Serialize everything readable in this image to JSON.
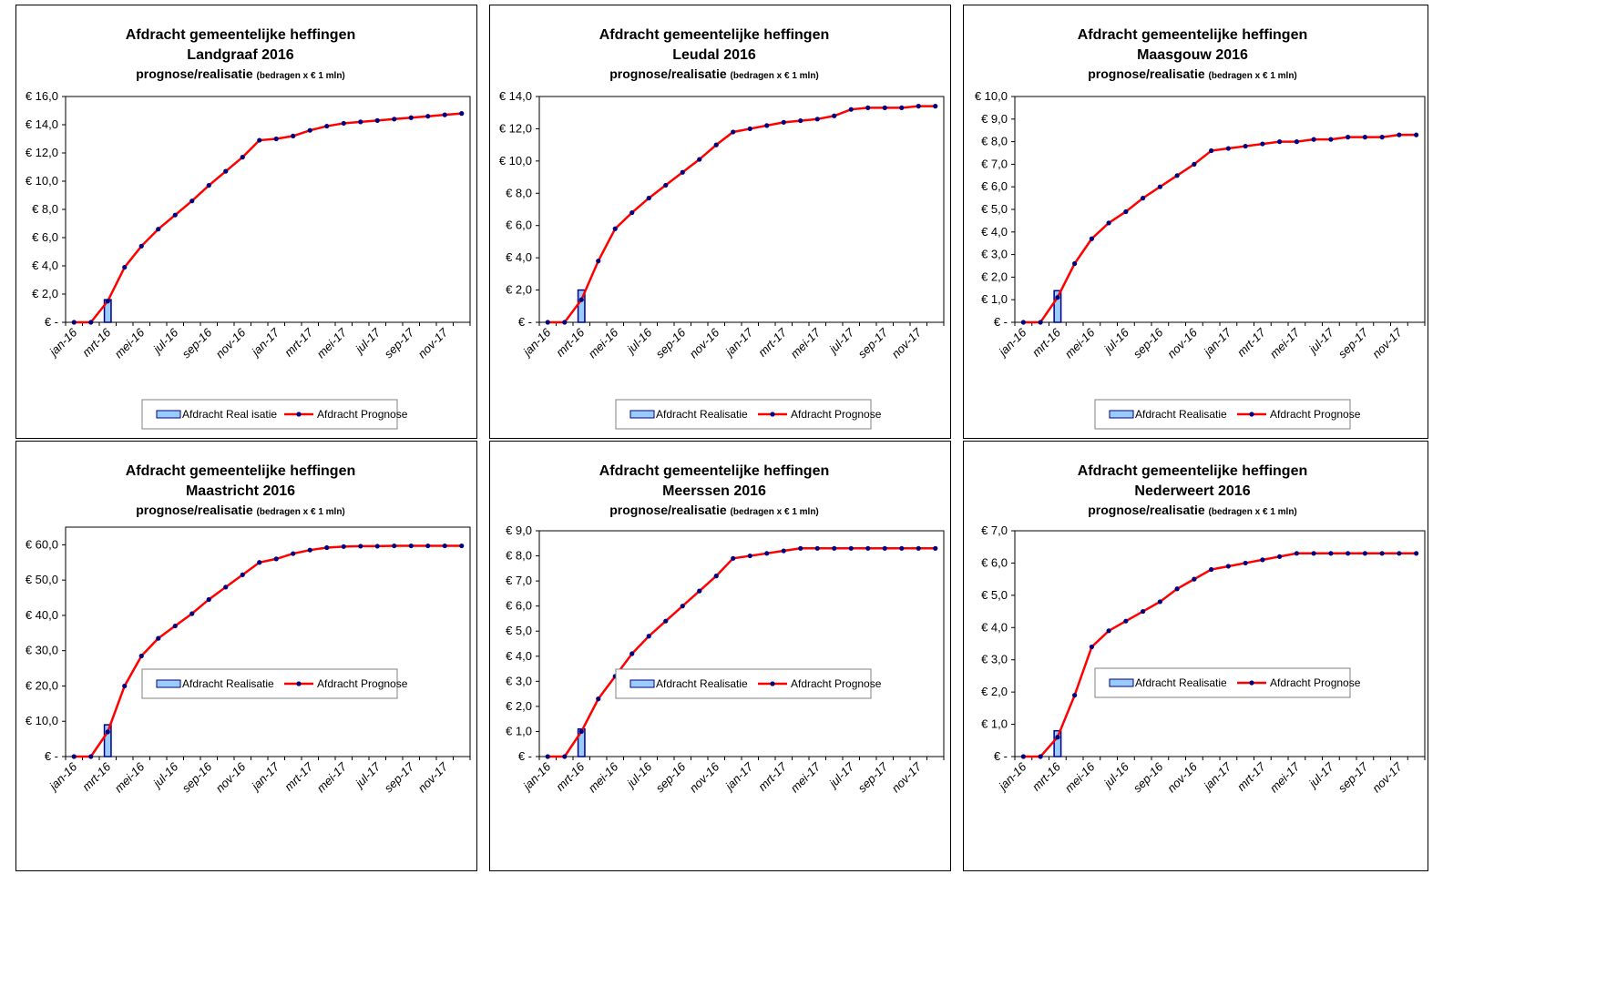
{
  "header": {
    "text": ""
  },
  "colors": {
    "realisatie_fill": "#99ccff",
    "realisatie_stroke": "#000080",
    "prognose_line": "#ff0000",
    "prognose_marker": "#000080",
    "plot_border": "#000000"
  },
  "legend": {
    "prognose": "Afdracht Prognose"
  },
  "x_tick_labels": [
    "jan-16",
    "mrt-16",
    "mei-16",
    "jul-16",
    "sep-16",
    "nov-16",
    "jan-17",
    "mrt-17",
    "mei-17",
    "jul-17",
    "sep-17",
    "nov-17"
  ],
  "chart_data": [
    {
      "type": "bar+line",
      "title_line1": "Afdracht gemeentelijke heffingen",
      "title_line2": "Landgraaf 2016",
      "title_line3_main": "prognose/realisatie",
      "title_line3_small": "(bedragen x € 1 mln)",
      "legend_realisatie": "Afdracht Real isatie",
      "ylim": [
        0,
        16
      ],
      "y_ticks": [
        "€ -",
        "€ 2,0",
        "€ 4,0",
        "€ 6,0",
        "€ 8,0",
        "€ 10,0",
        "€ 12,0",
        "€ 14,0",
        "€ 16,0"
      ],
      "x": [
        "jan-16",
        "feb-16",
        "mrt-16",
        "apr-16",
        "mei-16",
        "jun-16",
        "jul-16",
        "aug-16",
        "sep-16",
        "okt-16",
        "nov-16",
        "dec-16",
        "jan-17",
        "feb-17",
        "mrt-17",
        "apr-17",
        "mei-17",
        "jun-17",
        "jul-17",
        "aug-17",
        "sep-17",
        "okt-17",
        "nov-17",
        "dec-17"
      ],
      "series": [
        {
          "name": "Afdracht Realisatie",
          "kind": "bar",
          "values": [
            null,
            null,
            1.6,
            null,
            null,
            null,
            null,
            null,
            null,
            null,
            null,
            null,
            null,
            null,
            null,
            null,
            null,
            null,
            null,
            null,
            null,
            null,
            null,
            null
          ]
        },
        {
          "name": "Afdracht Prognose",
          "kind": "line",
          "values": [
            0,
            0,
            1.5,
            3.9,
            5.4,
            6.6,
            7.6,
            8.6,
            9.7,
            10.7,
            11.7,
            12.9,
            13.0,
            13.2,
            13.6,
            13.9,
            14.1,
            14.2,
            14.3,
            14.4,
            14.5,
            14.6,
            14.7,
            14.8
          ]
        }
      ]
    },
    {
      "type": "bar+line",
      "title_line1": "Afdracht gemeentelijke heffingen",
      "title_line2": "Leudal 2016",
      "title_line3_main": "prognose/realisatie",
      "title_line3_small": "(bedragen x € 1 mln)",
      "legend_realisatie": "Afdracht Realisatie",
      "ylim": [
        0,
        14
      ],
      "y_ticks": [
        "€ -",
        "€ 2,0",
        "€ 4,0",
        "€ 6,0",
        "€ 8,0",
        "€ 10,0",
        "€ 12,0",
        "€ 14,0"
      ],
      "x": [
        "jan-16",
        "feb-16",
        "mrt-16",
        "apr-16",
        "mei-16",
        "jun-16",
        "jul-16",
        "aug-16",
        "sep-16",
        "okt-16",
        "nov-16",
        "dec-16",
        "jan-17",
        "feb-17",
        "mrt-17",
        "apr-17",
        "mei-17",
        "jun-17",
        "jul-17",
        "aug-17",
        "sep-17",
        "okt-17",
        "nov-17",
        "dec-17"
      ],
      "series": [
        {
          "name": "Afdracht Realisatie",
          "kind": "bar",
          "values": [
            null,
            null,
            2.0,
            null,
            null,
            null,
            null,
            null,
            null,
            null,
            null,
            null,
            null,
            null,
            null,
            null,
            null,
            null,
            null,
            null,
            null,
            null,
            null,
            null
          ]
        },
        {
          "name": "Afdracht Prognose",
          "kind": "line",
          "values": [
            0,
            0,
            1.4,
            3.8,
            5.8,
            6.8,
            7.7,
            8.5,
            9.3,
            10.1,
            11.0,
            11.8,
            12.0,
            12.2,
            12.4,
            12.5,
            12.6,
            12.8,
            13.2,
            13.3,
            13.3,
            13.3,
            13.4,
            13.4
          ]
        }
      ]
    },
    {
      "type": "bar+line",
      "title_line1": "Afdracht gemeentelijke heffingen",
      "title_line2": "Maasgouw 2016",
      "title_line3_main": "prognose/realisatie",
      "title_line3_small": "(bedragen x € 1 mln)",
      "legend_realisatie": "Afdracht Realisatie",
      "ylim": [
        0,
        10
      ],
      "y_ticks": [
        "€ -",
        "€ 1,0",
        "€ 2,0",
        "€ 3,0",
        "€ 4,0",
        "€ 5,0",
        "€ 6,0",
        "€ 7,0",
        "€ 8,0",
        "€ 9,0",
        "€ 10,0"
      ],
      "x": [
        "jan-16",
        "feb-16",
        "mrt-16",
        "apr-16",
        "mei-16",
        "jun-16",
        "jul-16",
        "aug-16",
        "sep-16",
        "okt-16",
        "nov-16",
        "dec-16",
        "jan-17",
        "feb-17",
        "mrt-17",
        "apr-17",
        "mei-17",
        "jun-17",
        "jul-17",
        "aug-17",
        "sep-17",
        "okt-17",
        "nov-17",
        "dec-17"
      ],
      "series": [
        {
          "name": "Afdracht Realisatie",
          "kind": "bar",
          "values": [
            null,
            null,
            1.4,
            null,
            null,
            null,
            null,
            null,
            null,
            null,
            null,
            null,
            null,
            null,
            null,
            null,
            null,
            null,
            null,
            null,
            null,
            null,
            null,
            null
          ]
        },
        {
          "name": "Afdracht Prognose",
          "kind": "line",
          "values": [
            0,
            0,
            1.1,
            2.6,
            3.7,
            4.4,
            4.9,
            5.5,
            6.0,
            6.5,
            7.0,
            7.6,
            7.7,
            7.8,
            7.9,
            8.0,
            8.0,
            8.1,
            8.1,
            8.2,
            8.2,
            8.2,
            8.3,
            8.3
          ]
        }
      ]
    },
    {
      "type": "bar+line",
      "title_line1": "Afdracht gemeentelijke heffingen",
      "title_line2": "Maastricht 2016",
      "title_line3_main": "prognose/realisatie",
      "title_line3_small": "(bedragen x € 1 mln)",
      "legend_realisatie": "Afdracht Realisatie",
      "ylim": [
        0,
        65
      ],
      "y_ticks": [
        "€ -",
        "€ 10,0",
        "€ 20,0",
        "€ 30,0",
        "€ 40,0",
        "€ 50,0",
        "€ 60,0"
      ],
      "tick_step": 10,
      "x": [
        "jan-16",
        "feb-16",
        "mrt-16",
        "apr-16",
        "mei-16",
        "jun-16",
        "jul-16",
        "aug-16",
        "sep-16",
        "okt-16",
        "nov-16",
        "dec-16",
        "jan-17",
        "feb-17",
        "mrt-17",
        "apr-17",
        "mei-17",
        "jun-17",
        "jul-17",
        "aug-17",
        "sep-17",
        "okt-17",
        "nov-17",
        "dec-17"
      ],
      "series": [
        {
          "name": "Afdracht Realisatie",
          "kind": "bar",
          "values": [
            null,
            null,
            9.0,
            null,
            null,
            null,
            null,
            null,
            null,
            null,
            null,
            null,
            null,
            null,
            null,
            null,
            null,
            null,
            null,
            null,
            null,
            null,
            null,
            null
          ]
        },
        {
          "name": "Afdracht Prognose",
          "kind": "line",
          "values": [
            0,
            0,
            7.0,
            20.0,
            28.5,
            33.5,
            37.0,
            40.5,
            44.5,
            48.0,
            51.5,
            55.0,
            56.0,
            57.5,
            58.5,
            59.2,
            59.5,
            59.6,
            59.6,
            59.7,
            59.7,
            59.7,
            59.7,
            59.7
          ]
        }
      ]
    },
    {
      "type": "bar+line",
      "title_line1": "Afdracht gemeentelijke heffingen",
      "title_line2": "Meerssen 2016",
      "title_line3_main": "prognose/realisatie",
      "title_line3_small": "(bedragen x € 1 mln)",
      "legend_realisatie": "Afdracht Realisatie",
      "ylim": [
        0,
        9
      ],
      "y_ticks": [
        "€ -",
        "€ 1,0",
        "€ 2,0",
        "€ 3,0",
        "€ 4,0",
        "€ 5,0",
        "€ 6,0",
        "€ 7,0",
        "€ 8,0",
        "€ 9,0"
      ],
      "x": [
        "jan-16",
        "feb-16",
        "mrt-16",
        "apr-16",
        "mei-16",
        "jun-16",
        "jul-16",
        "aug-16",
        "sep-16",
        "okt-16",
        "nov-16",
        "dec-16",
        "jan-17",
        "feb-17",
        "mrt-17",
        "apr-17",
        "mei-17",
        "jun-17",
        "jul-17",
        "aug-17",
        "sep-17",
        "okt-17",
        "nov-17",
        "dec-17"
      ],
      "series": [
        {
          "name": "Afdracht Realisatie",
          "kind": "bar",
          "values": [
            null,
            null,
            1.1,
            null,
            null,
            null,
            null,
            null,
            null,
            null,
            null,
            null,
            null,
            null,
            null,
            null,
            null,
            null,
            null,
            null,
            null,
            null,
            null,
            null
          ]
        },
        {
          "name": "Afdracht Prognose",
          "kind": "line",
          "values": [
            0,
            0,
            1.0,
            2.3,
            3.2,
            4.1,
            4.8,
            5.4,
            6.0,
            6.6,
            7.2,
            7.9,
            8.0,
            8.1,
            8.2,
            8.3,
            8.3,
            8.3,
            8.3,
            8.3,
            8.3,
            8.3,
            8.3,
            8.3
          ]
        }
      ]
    },
    {
      "type": "bar+line",
      "title_line1": "Afdracht gemeentelijke heffingen",
      "title_line2": "Nederweert 2016",
      "title_line3_main": "prognose/realisatie",
      "title_line3_small": "(bedragen x € 1 mln)",
      "legend_realisatie": "Afdracht Realisatie",
      "ylim": [
        0,
        7
      ],
      "y_ticks": [
        "€ -",
        "€ 1,0",
        "€ 2,0",
        "€ 3,0",
        "€ 4,0",
        "€ 5,0",
        "€ 6,0",
        "€ 7,0"
      ],
      "x": [
        "jan-16",
        "feb-16",
        "mrt-16",
        "apr-16",
        "mei-16",
        "jun-16",
        "jul-16",
        "aug-16",
        "sep-16",
        "okt-16",
        "nov-16",
        "dec-16",
        "jan-17",
        "feb-17",
        "mrt-17",
        "apr-17",
        "mei-17",
        "jun-17",
        "jul-17",
        "aug-17",
        "sep-17",
        "okt-17",
        "nov-17",
        "dec-17"
      ],
      "series": [
        {
          "name": "Afdracht Realisatie",
          "kind": "bar",
          "values": [
            null,
            null,
            0.8,
            null,
            null,
            null,
            null,
            null,
            null,
            null,
            null,
            null,
            null,
            null,
            null,
            null,
            null,
            null,
            null,
            null,
            null,
            null,
            null,
            null
          ]
        },
        {
          "name": "Afdracht Prognose",
          "kind": "line",
          "values": [
            0,
            0,
            0.6,
            1.9,
            3.4,
            3.9,
            4.2,
            4.5,
            4.8,
            5.2,
            5.5,
            5.8,
            5.9,
            6.0,
            6.1,
            6.2,
            6.3,
            6.3,
            6.3,
            6.3,
            6.3,
            6.3,
            6.3,
            6.3
          ]
        }
      ]
    }
  ]
}
